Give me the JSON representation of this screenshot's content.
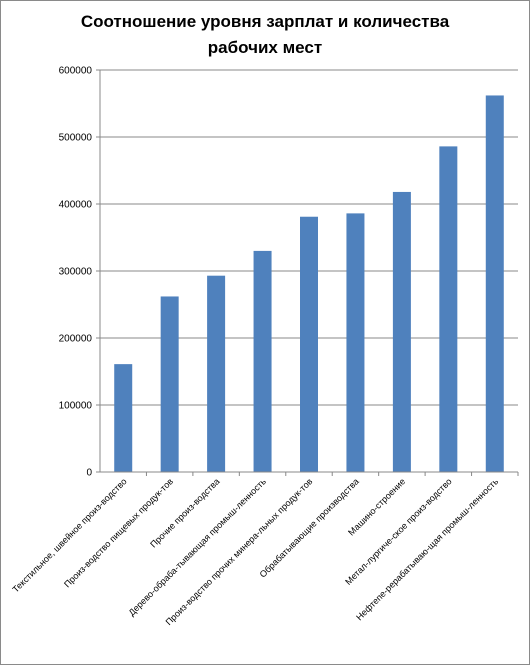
{
  "chart_data": {
    "type": "bar",
    "title_lines": [
      "Соотношение уровня зарплат и количества",
      "рабочих мест"
    ],
    "categories": [
      "Текстильное, швейное произ-водство",
      "Произ-водство пищевых продук-тов",
      "Прочие произ-водства",
      "Дерево-обраба-тывающая промыш-ленность",
      "Произ-водство прочих минера-льных продук-тов",
      "Обрабатывающие производства",
      "Машино-строение",
      "Метал-лургиче-ское произ-водство",
      "Нефтепе-рерабатываю-щая промыш-ленность"
    ],
    "values": [
      161000,
      262000,
      293000,
      330000,
      381000,
      386000,
      418000,
      486000,
      562000
    ],
    "ylim": [
      0,
      600000
    ],
    "yticks": [
      "0",
      "100000",
      "200000",
      "300000",
      "400000",
      "500000",
      "600000"
    ],
    "grid": true,
    "bar_color": "#4f81bd",
    "grid_color": "#888888"
  }
}
